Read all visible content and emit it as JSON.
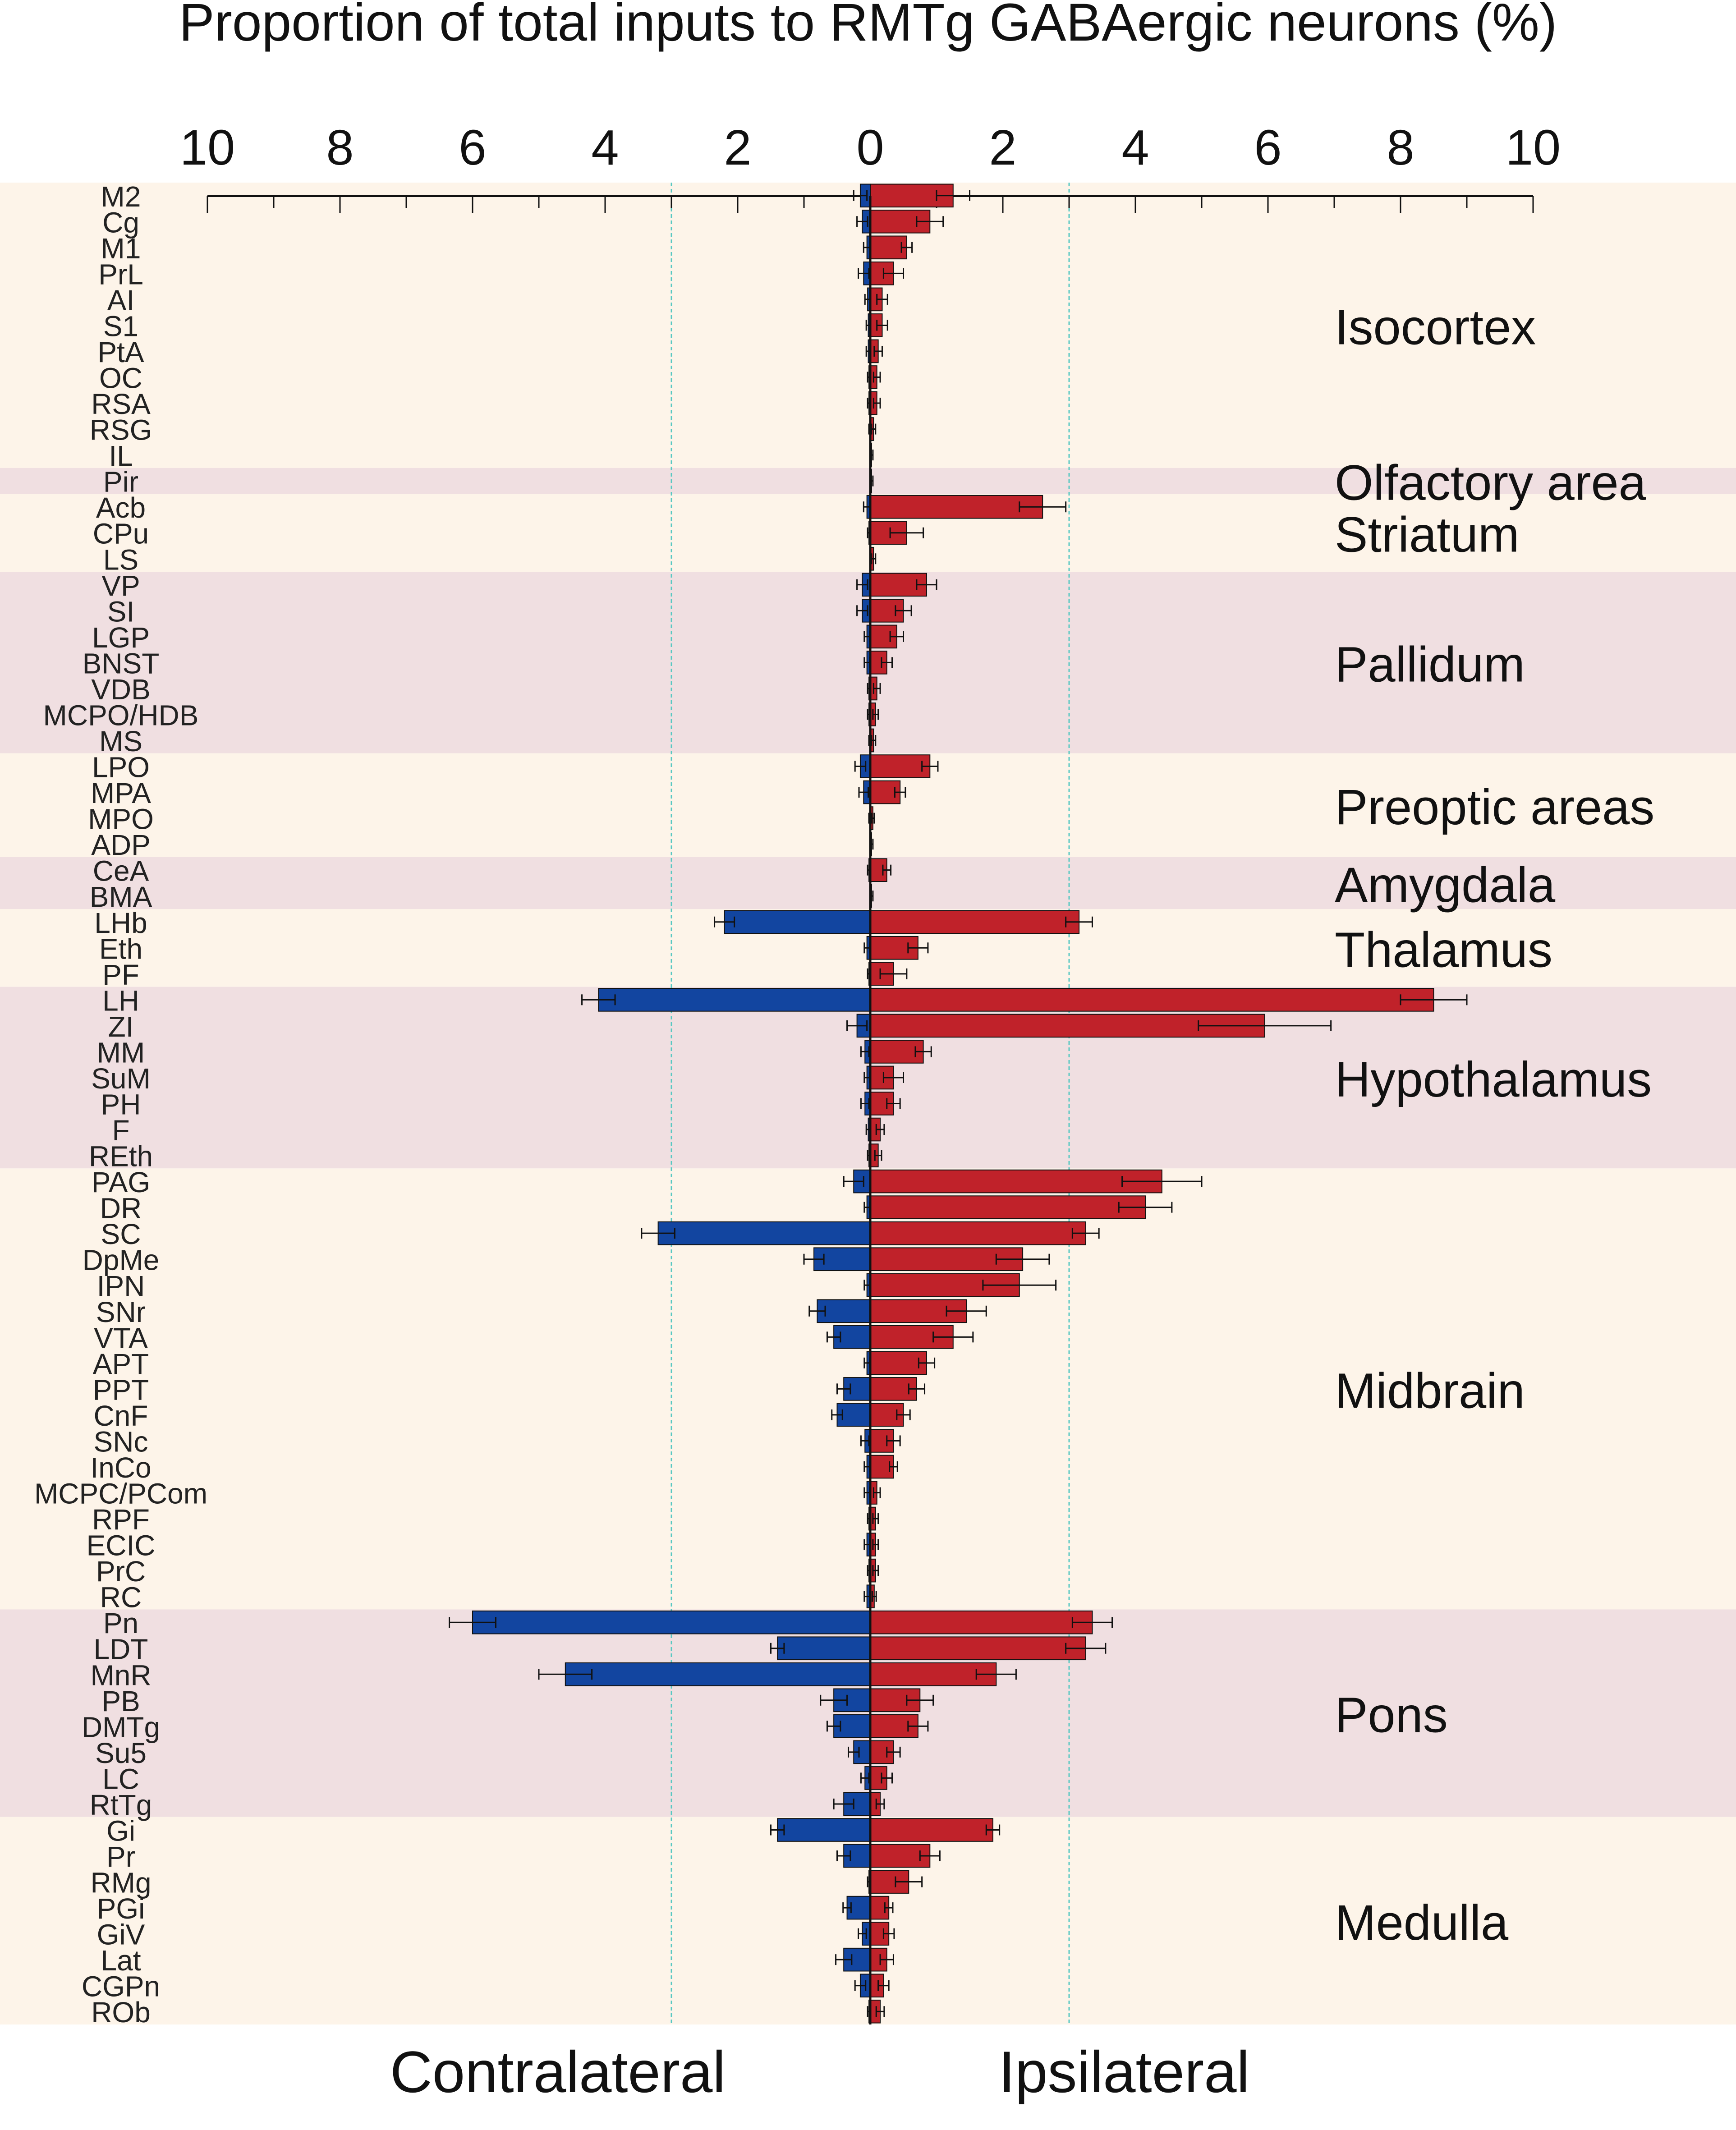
{
  "chart_data": {
    "type": "bar",
    "orientation": "horizontal-diverging",
    "title": "Proportion of total inputs to RMTg GABAergic neurons (%)",
    "left_label": "Contralateral",
    "right_label": "Ipsilateral",
    "xlim": [
      0,
      10
    ],
    "tick_labels": [
      "10",
      "8",
      "6",
      "4",
      "2",
      "0",
      "2",
      "4",
      "6",
      "8",
      "10"
    ],
    "reference_lines": [
      3,
      3
    ],
    "colors": {
      "contralateral": "#1245a0",
      "ipsilateral": "#c0222a",
      "band_light": "#fdf4e9",
      "band_dark": "#f0dfe1",
      "reference_line": "#58c8c2"
    },
    "regions": [
      {
        "name": "Isocortex",
        "shade": "light",
        "rows": [
          {
            "label": "M2",
            "contra": 0.15,
            "contra_err": 0.1,
            "ipsi": 1.25,
            "ipsi_err": 0.25
          },
          {
            "label": "Cg",
            "contra": 0.12,
            "contra_err": 0.08,
            "ipsi": 0.9,
            "ipsi_err": 0.2
          },
          {
            "label": "M1",
            "contra": 0.05,
            "contra_err": 0.05,
            "ipsi": 0.55,
            "ipsi_err": 0.08
          },
          {
            "label": "PrL",
            "contra": 0.1,
            "contra_err": 0.08,
            "ipsi": 0.35,
            "ipsi_err": 0.15
          },
          {
            "label": "AI",
            "contra": 0.04,
            "contra_err": 0.04,
            "ipsi": 0.18,
            "ipsi_err": 0.08
          },
          {
            "label": "S1",
            "contra": 0.03,
            "contra_err": 0.03,
            "ipsi": 0.18,
            "ipsi_err": 0.08
          },
          {
            "label": "PtA",
            "contra": 0.03,
            "contra_err": 0.03,
            "ipsi": 0.12,
            "ipsi_err": 0.06
          },
          {
            "label": "OC",
            "contra": 0.02,
            "contra_err": 0.02,
            "ipsi": 0.1,
            "ipsi_err": 0.05
          },
          {
            "label": "RSA",
            "contra": 0.02,
            "contra_err": 0.02,
            "ipsi": 0.1,
            "ipsi_err": 0.05
          },
          {
            "label": "RSG",
            "contra": 0.01,
            "contra_err": 0.01,
            "ipsi": 0.05,
            "ipsi_err": 0.03
          },
          {
            "label": "IL",
            "contra": 0,
            "contra_err": 0,
            "ipsi": 0.02,
            "ipsi_err": 0.02
          }
        ]
      },
      {
        "name": "Olfactory area",
        "shade": "dark",
        "rows": [
          {
            "label": "Pir",
            "contra": 0,
            "contra_err": 0,
            "ipsi": 0.02,
            "ipsi_err": 0.02
          }
        ]
      },
      {
        "name": "Striatum",
        "shade": "light",
        "rows": [
          {
            "label": "Acb",
            "contra": 0.05,
            "contra_err": 0.05,
            "ipsi": 2.6,
            "ipsi_err": 0.35
          },
          {
            "label": "CPu",
            "contra": 0.02,
            "contra_err": 0.02,
            "ipsi": 0.55,
            "ipsi_err": 0.25
          },
          {
            "label": "LS",
            "contra": 0,
            "contra_err": 0,
            "ipsi": 0.05,
            "ipsi_err": 0.03
          }
        ]
      },
      {
        "name": "Pallidum",
        "shade": "dark",
        "rows": [
          {
            "label": "VP",
            "contra": 0.12,
            "contra_err": 0.08,
            "ipsi": 0.85,
            "ipsi_err": 0.15
          },
          {
            "label": "SI",
            "contra": 0.12,
            "contra_err": 0.08,
            "ipsi": 0.5,
            "ipsi_err": 0.12
          },
          {
            "label": "LGP",
            "contra": 0.05,
            "contra_err": 0.04,
            "ipsi": 0.4,
            "ipsi_err": 0.1
          },
          {
            "label": "BNST",
            "contra": 0.05,
            "contra_err": 0.04,
            "ipsi": 0.25,
            "ipsi_err": 0.08
          },
          {
            "label": "VDB",
            "contra": 0.02,
            "contra_err": 0.02,
            "ipsi": 0.1,
            "ipsi_err": 0.05
          },
          {
            "label": "MCPO/HDB",
            "contra": 0.02,
            "contra_err": 0.02,
            "ipsi": 0.08,
            "ipsi_err": 0.04
          },
          {
            "label": "MS",
            "contra": 0.01,
            "contra_err": 0.01,
            "ipsi": 0.05,
            "ipsi_err": 0.03
          }
        ]
      },
      {
        "name": "Preoptic areas",
        "shade": "light",
        "rows": [
          {
            "label": "LPO",
            "contra": 0.15,
            "contra_err": 0.08,
            "ipsi": 0.9,
            "ipsi_err": 0.12
          },
          {
            "label": "MPA",
            "contra": 0.1,
            "contra_err": 0.07,
            "ipsi": 0.45,
            "ipsi_err": 0.08
          },
          {
            "label": "MPO",
            "contra": 0.01,
            "contra_err": 0.01,
            "ipsi": 0.04,
            "ipsi_err": 0.02
          },
          {
            "label": "ADP",
            "contra": 0,
            "contra_err": 0,
            "ipsi": 0.02,
            "ipsi_err": 0.02
          }
        ]
      },
      {
        "name": "Amygdala",
        "shade": "dark",
        "rows": [
          {
            "label": "CeA",
            "contra": 0.02,
            "contra_err": 0.02,
            "ipsi": 0.25,
            "ipsi_err": 0.06
          },
          {
            "label": "BMA",
            "contra": 0,
            "contra_err": 0,
            "ipsi": 0.02,
            "ipsi_err": 0.02
          }
        ]
      },
      {
        "name": "Thalamus",
        "shade": "light",
        "rows": [
          {
            "label": "LHb",
            "contra": 2.2,
            "contra_err": 0.15,
            "ipsi": 3.15,
            "ipsi_err": 0.2
          },
          {
            "label": "Eth",
            "contra": 0.05,
            "contra_err": 0.04,
            "ipsi": 0.72,
            "ipsi_err": 0.15
          },
          {
            "label": "PF",
            "contra": 0.02,
            "contra_err": 0.02,
            "ipsi": 0.35,
            "ipsi_err": 0.2
          }
        ]
      },
      {
        "name": "Hypothalamus",
        "shade": "dark",
        "rows": [
          {
            "label": "LH",
            "contra": 4.1,
            "contra_err": 0.25,
            "ipsi": 8.5,
            "ipsi_err": 0.5
          },
          {
            "label": "ZI",
            "contra": 0.2,
            "contra_err": 0.15,
            "ipsi": 5.95,
            "ipsi_err": 1.0
          },
          {
            "label": "MM",
            "contra": 0.08,
            "contra_err": 0.06,
            "ipsi": 0.8,
            "ipsi_err": 0.12
          },
          {
            "label": "SuM",
            "contra": 0.05,
            "contra_err": 0.04,
            "ipsi": 0.35,
            "ipsi_err": 0.15
          },
          {
            "label": "PH",
            "contra": 0.08,
            "contra_err": 0.06,
            "ipsi": 0.35,
            "ipsi_err": 0.1
          },
          {
            "label": "F",
            "contra": 0.03,
            "contra_err": 0.03,
            "ipsi": 0.15,
            "ipsi_err": 0.06
          },
          {
            "label": "REth",
            "contra": 0.02,
            "contra_err": 0.02,
            "ipsi": 0.12,
            "ipsi_err": 0.05
          }
        ]
      },
      {
        "name": "Midbrain",
        "shade": "light",
        "rows": [
          {
            "label": "PAG",
            "contra": 0.25,
            "contra_err": 0.15,
            "ipsi": 4.4,
            "ipsi_err": 0.6
          },
          {
            "label": "DR",
            "contra": 0.05,
            "contra_err": 0.04,
            "ipsi": 4.15,
            "ipsi_err": 0.4
          },
          {
            "label": "SC",
            "contra": 3.2,
            "contra_err": 0.25,
            "ipsi": 3.25,
            "ipsi_err": 0.2
          },
          {
            "label": "DpMe",
            "contra": 0.85,
            "contra_err": 0.15,
            "ipsi": 2.3,
            "ipsi_err": 0.4
          },
          {
            "label": "IPN",
            "contra": 0.05,
            "contra_err": 0.04,
            "ipsi": 2.25,
            "ipsi_err": 0.55
          },
          {
            "label": "SNr",
            "contra": 0.8,
            "contra_err": 0.12,
            "ipsi": 1.45,
            "ipsi_err": 0.3
          },
          {
            "label": "VTA",
            "contra": 0.55,
            "contra_err": 0.1,
            "ipsi": 1.25,
            "ipsi_err": 0.3
          },
          {
            "label": "APT",
            "contra": 0.05,
            "contra_err": 0.04,
            "ipsi": 0.85,
            "ipsi_err": 0.12
          },
          {
            "label": "PPT",
            "contra": 0.4,
            "contra_err": 0.1,
            "ipsi": 0.7,
            "ipsi_err": 0.12
          },
          {
            "label": "CnF",
            "contra": 0.5,
            "contra_err": 0.08,
            "ipsi": 0.5,
            "ipsi_err": 0.1
          },
          {
            "label": "SNc",
            "contra": 0.08,
            "contra_err": 0.06,
            "ipsi": 0.35,
            "ipsi_err": 0.1
          },
          {
            "label": "InCo",
            "contra": 0.05,
            "contra_err": 0.04,
            "ipsi": 0.35,
            "ipsi_err": 0.06
          },
          {
            "label": "MCPC/PCom",
            "contra": 0.05,
            "contra_err": 0.04,
            "ipsi": 0.1,
            "ipsi_err": 0.05
          },
          {
            "label": "RPF",
            "contra": 0.02,
            "contra_err": 0.02,
            "ipsi": 0.08,
            "ipsi_err": 0.04
          },
          {
            "label": "ECIC",
            "contra": 0.05,
            "contra_err": 0.04,
            "ipsi": 0.08,
            "ipsi_err": 0.04
          },
          {
            "label": "PrC",
            "contra": 0.02,
            "contra_err": 0.02,
            "ipsi": 0.08,
            "ipsi_err": 0.04
          },
          {
            "label": "RC",
            "contra": 0.05,
            "contra_err": 0.04,
            "ipsi": 0.06,
            "ipsi_err": 0.03
          }
        ]
      },
      {
        "name": "Pons",
        "shade": "dark",
        "rows": [
          {
            "label": "Pn",
            "contra": 6.0,
            "contra_err": 0.35,
            "ipsi": 3.35,
            "ipsi_err": 0.3
          },
          {
            "label": "LDT",
            "contra": 1.4,
            "contra_err": 0.1,
            "ipsi": 3.25,
            "ipsi_err": 0.3
          },
          {
            "label": "MnR",
            "contra": 4.6,
            "contra_err": 0.4,
            "ipsi": 1.9,
            "ipsi_err": 0.3
          },
          {
            "label": "PB",
            "contra": 0.55,
            "contra_err": 0.2,
            "ipsi": 0.75,
            "ipsi_err": 0.2
          },
          {
            "label": "DMTg",
            "contra": 0.55,
            "contra_err": 0.1,
            "ipsi": 0.72,
            "ipsi_err": 0.15
          },
          {
            "label": "Su5",
            "contra": 0.25,
            "contra_err": 0.08,
            "ipsi": 0.35,
            "ipsi_err": 0.1
          },
          {
            "label": "LC",
            "contra": 0.08,
            "contra_err": 0.06,
            "ipsi": 0.25,
            "ipsi_err": 0.08
          },
          {
            "label": "RtTg",
            "contra": 0.4,
            "contra_err": 0.15,
            "ipsi": 0.15,
            "ipsi_err": 0.06
          }
        ]
      },
      {
        "name": "Medulla",
        "shade": "light",
        "rows": [
          {
            "label": "Gi",
            "contra": 1.4,
            "contra_err": 0.1,
            "ipsi": 1.85,
            "ipsi_err": 0.1
          },
          {
            "label": "Pr",
            "contra": 0.4,
            "contra_err": 0.1,
            "ipsi": 0.9,
            "ipsi_err": 0.15
          },
          {
            "label": "RMg",
            "contra": 0.02,
            "contra_err": 0.02,
            "ipsi": 0.58,
            "ipsi_err": 0.2
          },
          {
            "label": "PGi",
            "contra": 0.35,
            "contra_err": 0.06,
            "ipsi": 0.28,
            "ipsi_err": 0.06
          },
          {
            "label": "GiV",
            "contra": 0.12,
            "contra_err": 0.06,
            "ipsi": 0.28,
            "ipsi_err": 0.08
          },
          {
            "label": "Lat",
            "contra": 0.4,
            "contra_err": 0.12,
            "ipsi": 0.25,
            "ipsi_err": 0.1
          },
          {
            "label": "CGPn",
            "contra": 0.15,
            "contra_err": 0.08,
            "ipsi": 0.2,
            "ipsi_err": 0.08
          },
          {
            "label": "ROb",
            "contra": 0.02,
            "contra_err": 0.02,
            "ipsi": 0.15,
            "ipsi_err": 0.06
          }
        ]
      }
    ]
  }
}
